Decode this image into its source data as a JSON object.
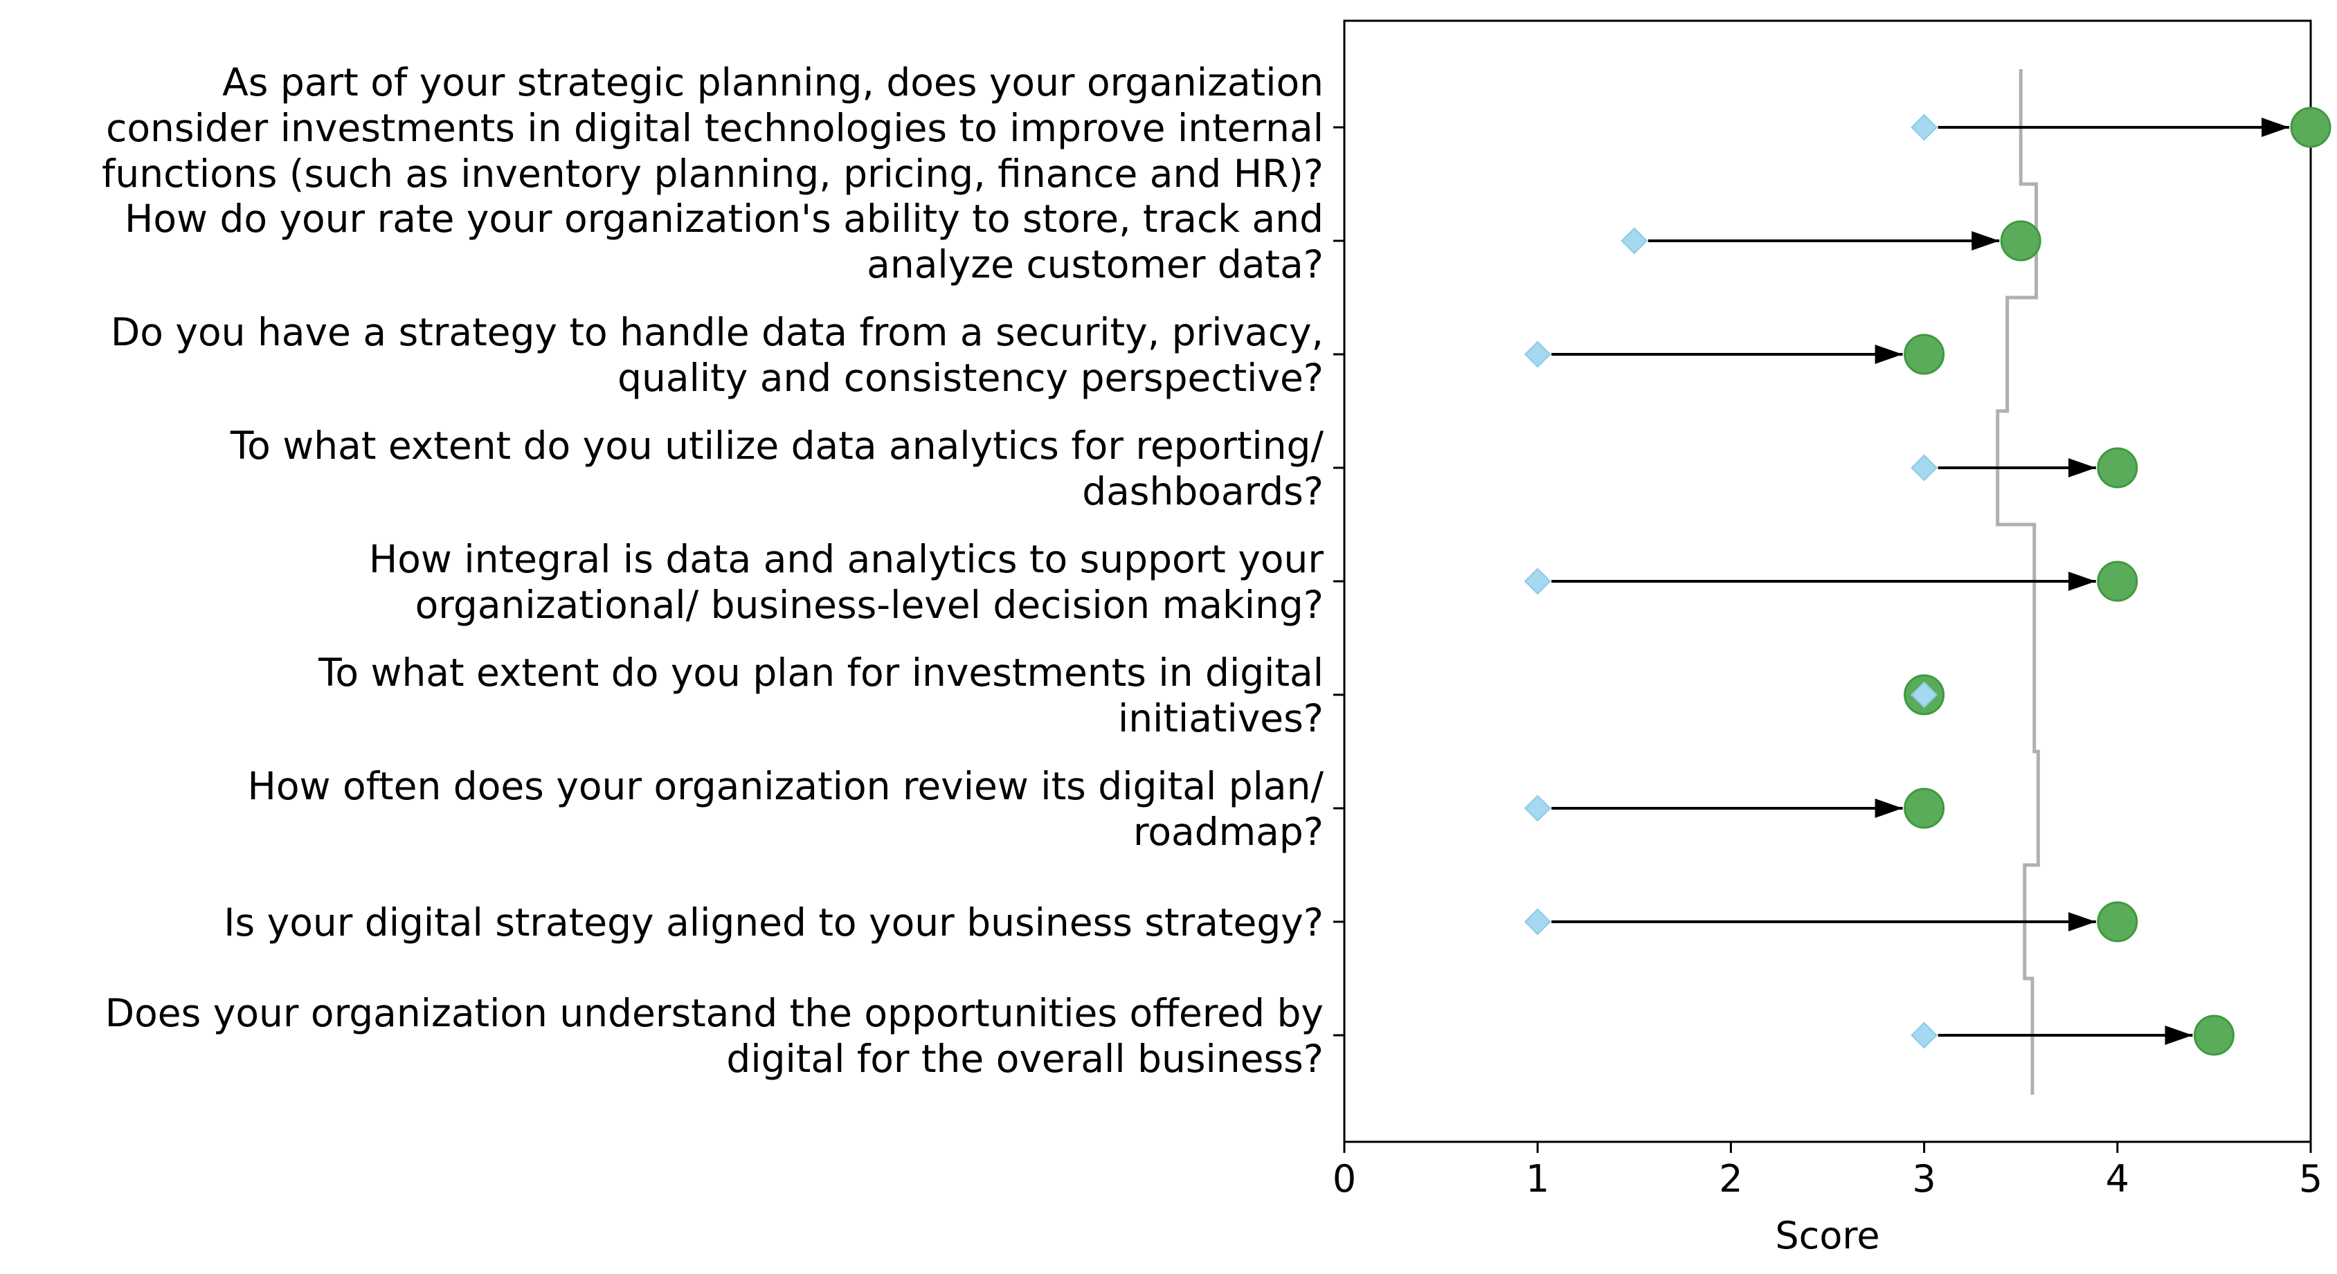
{
  "chart_data": {
    "type": "dumbbell",
    "xlabel": "Score",
    "xlim": [
      0,
      5
    ],
    "x_ticks": [
      0,
      1,
      2,
      3,
      4,
      5
    ],
    "grid": false,
    "colors": {
      "start_marker": "#a6d8f0",
      "end_marker": "#5aac5a",
      "end_marker_edge": "#3f9a3f",
      "arrow": "#000000",
      "step_line": "#b0b0b0"
    },
    "categories": [
      {
        "label_lines": [
          "As part of your strategic planning, does your organization",
          "consider investments in digital technologies to improve internal",
          "functions (such as inventory planning, pricing, finance and HR)?"
        ],
        "start": 3,
        "end": 5,
        "step_value": 3.5
      },
      {
        "label_lines": [
          "How do your rate your organization's ability to store, track and",
          "analyze customer data?"
        ],
        "start": 1.5,
        "end": 3.5,
        "step_value": 3.58
      },
      {
        "label_lines": [
          "Do you have a strategy to handle data from a security, privacy,",
          "quality and consistency perspective?"
        ],
        "start": 1,
        "end": 3,
        "step_value": 3.43
      },
      {
        "label_lines": [
          "To what extent do you utilize data analytics for reporting/",
          "dashboards?"
        ],
        "start": 3,
        "end": 4,
        "step_value": 3.38
      },
      {
        "label_lines": [
          "How integral is data and analytics to support your",
          "organizational/ business-level decision making?"
        ],
        "start": 1,
        "end": 4,
        "step_value": 3.57
      },
      {
        "label_lines": [
          "To what extent do you plan for investments in digital",
          "initiatives?"
        ],
        "start": 3,
        "end": 3,
        "step_value": 3.57
      },
      {
        "label_lines": [
          "How often does your organization review its digital plan/",
          "roadmap?"
        ],
        "start": 1,
        "end": 3,
        "step_value": 3.59
      },
      {
        "label_lines": [
          "Is your digital strategy aligned to your business strategy?"
        ],
        "start": 1,
        "end": 4,
        "step_value": 3.52
      },
      {
        "label_lines": [
          "Does your organization understand the opportunities offered by",
          "digital for the overall business?"
        ],
        "start": 3,
        "end": 4.5,
        "step_value": 3.56
      }
    ]
  }
}
